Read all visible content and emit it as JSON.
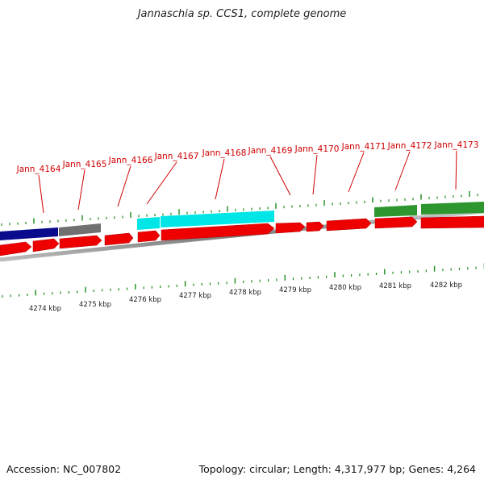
{
  "title": "Jannaschia sp. CCS1, complete genome",
  "footer": {
    "accession": "Accession: NC_007802",
    "summary": "Topology: circular; Length: 4,317,977 bp; Genes: 4,264"
  },
  "colors": {
    "gene_red": "#ee0000",
    "gene_label": "#d00000",
    "tick_green": "#1c8c1c",
    "navy": "#0a0a8c",
    "gray": "#707070",
    "cyan": "#00e5e5",
    "green": "#2e962e"
  },
  "gene_labels": [
    "Jann_4164",
    "Jann_4165",
    "Jann_4166",
    "Jann_4167",
    "Jann_4168",
    "Jann_4169",
    "Jann_4170",
    "Jann_4171",
    "Jann_4172",
    "Jann_4173"
  ],
  "kbp_labels": [
    "4274 kbp",
    "4275 kbp",
    "4276 kbp",
    "4277 kbp",
    "4278 kbp",
    "4279 kbp",
    "4280 kbp",
    "4281 kbp",
    "4282 kbp"
  ]
}
